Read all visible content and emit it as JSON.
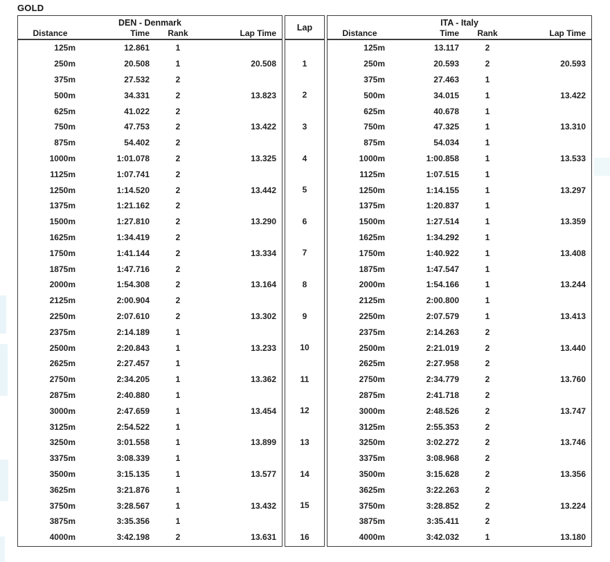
{
  "title": "GOLD",
  "columns": {
    "distance": "Distance",
    "time": "Time",
    "rank": "Rank",
    "lap_time": "Lap Time"
  },
  "lap_header": "Lap",
  "laps": [
    "",
    "1",
    "",
    "2",
    "",
    "3",
    "",
    "4",
    "",
    "5",
    "",
    "6",
    "",
    "7",
    "",
    "8",
    "",
    "9",
    "",
    "10",
    "",
    "11",
    "",
    "12",
    "",
    "13",
    "",
    "14",
    "",
    "15",
    "",
    "16"
  ],
  "den": {
    "team": "DEN - Denmark",
    "rows": [
      {
        "distance": "125m",
        "time": "12.861",
        "rank": "1",
        "lap_time": ""
      },
      {
        "distance": "250m",
        "time": "20.508",
        "rank": "1",
        "lap_time": "20.508"
      },
      {
        "distance": "375m",
        "time": "27.532",
        "rank": "2",
        "lap_time": ""
      },
      {
        "distance": "500m",
        "time": "34.331",
        "rank": "2",
        "lap_time": "13.823"
      },
      {
        "distance": "625m",
        "time": "41.022",
        "rank": "2",
        "lap_time": ""
      },
      {
        "distance": "750m",
        "time": "47.753",
        "rank": "2",
        "lap_time": "13.422"
      },
      {
        "distance": "875m",
        "time": "54.402",
        "rank": "2",
        "lap_time": ""
      },
      {
        "distance": "1000m",
        "time": "1:01.078",
        "rank": "2",
        "lap_time": "13.325"
      },
      {
        "distance": "1125m",
        "time": "1:07.741",
        "rank": "2",
        "lap_time": ""
      },
      {
        "distance": "1250m",
        "time": "1:14.520",
        "rank": "2",
        "lap_time": "13.442"
      },
      {
        "distance": "1375m",
        "time": "1:21.162",
        "rank": "2",
        "lap_time": ""
      },
      {
        "distance": "1500m",
        "time": "1:27.810",
        "rank": "2",
        "lap_time": "13.290"
      },
      {
        "distance": "1625m",
        "time": "1:34.419",
        "rank": "2",
        "lap_time": ""
      },
      {
        "distance": "1750m",
        "time": "1:41.144",
        "rank": "2",
        "lap_time": "13.334"
      },
      {
        "distance": "1875m",
        "time": "1:47.716",
        "rank": "2",
        "lap_time": ""
      },
      {
        "distance": "2000m",
        "time": "1:54.308",
        "rank": "2",
        "lap_time": "13.164"
      },
      {
        "distance": "2125m",
        "time": "2:00.904",
        "rank": "2",
        "lap_time": ""
      },
      {
        "distance": "2250m",
        "time": "2:07.610",
        "rank": "2",
        "lap_time": "13.302"
      },
      {
        "distance": "2375m",
        "time": "2:14.189",
        "rank": "1",
        "lap_time": ""
      },
      {
        "distance": "2500m",
        "time": "2:20.843",
        "rank": "1",
        "lap_time": "13.233"
      },
      {
        "distance": "2625m",
        "time": "2:27.457",
        "rank": "1",
        "lap_time": ""
      },
      {
        "distance": "2750m",
        "time": "2:34.205",
        "rank": "1",
        "lap_time": "13.362"
      },
      {
        "distance": "2875m",
        "time": "2:40.880",
        "rank": "1",
        "lap_time": ""
      },
      {
        "distance": "3000m",
        "time": "2:47.659",
        "rank": "1",
        "lap_time": "13.454"
      },
      {
        "distance": "3125m",
        "time": "2:54.522",
        "rank": "1",
        "lap_time": ""
      },
      {
        "distance": "3250m",
        "time": "3:01.558",
        "rank": "1",
        "lap_time": "13.899"
      },
      {
        "distance": "3375m",
        "time": "3:08.339",
        "rank": "1",
        "lap_time": ""
      },
      {
        "distance": "3500m",
        "time": "3:15.135",
        "rank": "1",
        "lap_time": "13.577"
      },
      {
        "distance": "3625m",
        "time": "3:21.876",
        "rank": "1",
        "lap_time": ""
      },
      {
        "distance": "3750m",
        "time": "3:28.567",
        "rank": "1",
        "lap_time": "13.432"
      },
      {
        "distance": "3875m",
        "time": "3:35.356",
        "rank": "1",
        "lap_time": ""
      },
      {
        "distance": "4000m",
        "time": "3:42.198",
        "rank": "2",
        "lap_time": "13.631"
      }
    ]
  },
  "ita": {
    "team": "ITA - Italy",
    "rows": [
      {
        "distance": "125m",
        "time": "13.117",
        "rank": "2",
        "lap_time": ""
      },
      {
        "distance": "250m",
        "time": "20.593",
        "rank": "2",
        "lap_time": "20.593"
      },
      {
        "distance": "375m",
        "time": "27.463",
        "rank": "1",
        "lap_time": ""
      },
      {
        "distance": "500m",
        "time": "34.015",
        "rank": "1",
        "lap_time": "13.422"
      },
      {
        "distance": "625m",
        "time": "40.678",
        "rank": "1",
        "lap_time": ""
      },
      {
        "distance": "750m",
        "time": "47.325",
        "rank": "1",
        "lap_time": "13.310"
      },
      {
        "distance": "875m",
        "time": "54.034",
        "rank": "1",
        "lap_time": ""
      },
      {
        "distance": "1000m",
        "time": "1:00.858",
        "rank": "1",
        "lap_time": "13.533"
      },
      {
        "distance": "1125m",
        "time": "1:07.515",
        "rank": "1",
        "lap_time": ""
      },
      {
        "distance": "1250m",
        "time": "1:14.155",
        "rank": "1",
        "lap_time": "13.297"
      },
      {
        "distance": "1375m",
        "time": "1:20.837",
        "rank": "1",
        "lap_time": ""
      },
      {
        "distance": "1500m",
        "time": "1:27.514",
        "rank": "1",
        "lap_time": "13.359"
      },
      {
        "distance": "1625m",
        "time": "1:34.292",
        "rank": "1",
        "lap_time": ""
      },
      {
        "distance": "1750m",
        "time": "1:40.922",
        "rank": "1",
        "lap_time": "13.408"
      },
      {
        "distance": "1875m",
        "time": "1:47.547",
        "rank": "1",
        "lap_time": ""
      },
      {
        "distance": "2000m",
        "time": "1:54.166",
        "rank": "1",
        "lap_time": "13.244"
      },
      {
        "distance": "2125m",
        "time": "2:00.800",
        "rank": "1",
        "lap_time": ""
      },
      {
        "distance": "2250m",
        "time": "2:07.579",
        "rank": "1",
        "lap_time": "13.413"
      },
      {
        "distance": "2375m",
        "time": "2:14.263",
        "rank": "2",
        "lap_time": ""
      },
      {
        "distance": "2500m",
        "time": "2:21.019",
        "rank": "2",
        "lap_time": "13.440"
      },
      {
        "distance": "2625m",
        "time": "2:27.958",
        "rank": "2",
        "lap_time": ""
      },
      {
        "distance": "2750m",
        "time": "2:34.779",
        "rank": "2",
        "lap_time": "13.760"
      },
      {
        "distance": "2875m",
        "time": "2:41.718",
        "rank": "2",
        "lap_time": ""
      },
      {
        "distance": "3000m",
        "time": "2:48.526",
        "rank": "2",
        "lap_time": "13.747"
      },
      {
        "distance": "3125m",
        "time": "2:55.353",
        "rank": "2",
        "lap_time": ""
      },
      {
        "distance": "3250m",
        "time": "3:02.272",
        "rank": "2",
        "lap_time": "13.746"
      },
      {
        "distance": "3375m",
        "time": "3:08.968",
        "rank": "2",
        "lap_time": ""
      },
      {
        "distance": "3500m",
        "time": "3:15.628",
        "rank": "2",
        "lap_time": "13.356"
      },
      {
        "distance": "3625m",
        "time": "3:22.263",
        "rank": "2",
        "lap_time": ""
      },
      {
        "distance": "3750m",
        "time": "3:28.852",
        "rank": "2",
        "lap_time": "13.224"
      },
      {
        "distance": "3875m",
        "time": "3:35.411",
        "rank": "2",
        "lap_time": ""
      },
      {
        "distance": "4000m",
        "time": "3:42.032",
        "rank": "1",
        "lap_time": "13.180"
      }
    ]
  }
}
